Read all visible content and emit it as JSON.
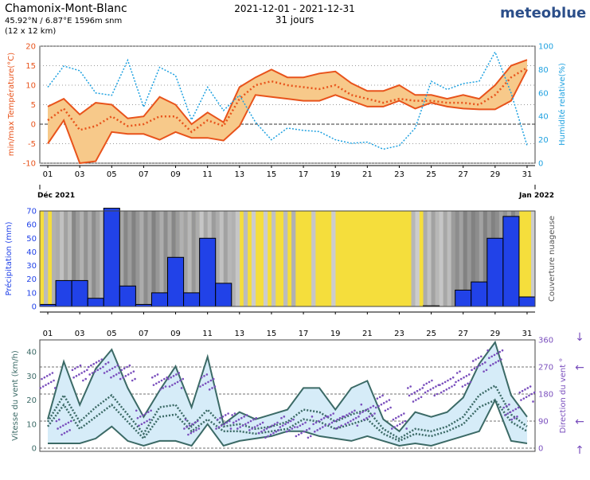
{
  "header": {
    "location": "Chamonix-Mont-Blanc",
    "coords": "45.92°N / 6.87°E   1596m snm",
    "grid": "(12 x 12 km)",
    "date_range": "2021-12-01 - 2021-12-31",
    "days": "31 jours",
    "brand": "meteoblue"
  },
  "day_ticks": [
    "01",
    "03",
    "05",
    "07",
    "09",
    "11",
    "13",
    "15",
    "17",
    "19",
    "21",
    "23",
    "25",
    "27",
    "29",
    "31"
  ],
  "date_marks": {
    "start": "Déc 2021",
    "end": "Jan 2022"
  },
  "colors": {
    "temp_line": "#e8531b",
    "temp_fill": "#f7c98a",
    "humidity": "#1ea1e0",
    "precip": "#2142e8",
    "cloud_clear": "#f5de3c",
    "cloud_dark": "#8c8c8c",
    "wind_line": "#3b6a66",
    "wind_fill": "#d6ecf8",
    "wind_dir": "#7a4fbd"
  },
  "chart_data": [
    {
      "type": "line",
      "x": [
        1,
        2,
        3,
        4,
        5,
        6,
        7,
        8,
        9,
        10,
        11,
        12,
        13,
        14,
        15,
        16,
        17,
        18,
        19,
        20,
        21,
        22,
        23,
        24,
        25,
        26,
        27,
        28,
        29,
        30,
        31
      ],
      "ylabel": "min/max Température(°C)",
      "y2label": "Humidité relative(%)",
      "ylim": [
        -10,
        20
      ],
      "y2lim": [
        0,
        100
      ],
      "yticks": [
        -10,
        -5,
        0,
        5,
        10,
        15,
        20
      ],
      "y2ticks": [
        0,
        20,
        40,
        60,
        80,
        100
      ],
      "series": [
        {
          "role": "tmax",
          "values": [
            4.5,
            6.5,
            2.5,
            5.5,
            5,
            1.5,
            2,
            7,
            5,
            0,
            3,
            0.5,
            9.5,
            12,
            14,
            12,
            12,
            13,
            13.5,
            10.5,
            8.5,
            8.5,
            10,
            7.5,
            7.5,
            6.5,
            7.5,
            6.5,
            10,
            15,
            16.5
          ]
        },
        {
          "role": "tmean",
          "values": [
            1,
            4,
            -1.5,
            -0.5,
            2,
            -0.5,
            0,
            2,
            2,
            -2,
            1,
            -0.5,
            6.5,
            10,
            11,
            10,
            9.5,
            9,
            10,
            7.5,
            6.5,
            5.5,
            6.5,
            6,
            6,
            5.5,
            5.5,
            5,
            7.5,
            12,
            14.5
          ]
        },
        {
          "role": "tmin",
          "values": [
            -5,
            1,
            -10,
            -9.5,
            -2,
            -2.5,
            -2.5,
            -4,
            -2,
            -3.5,
            -3.5,
            -4.2,
            -0.5,
            7.5,
            7,
            6.5,
            6,
            6,
            7.5,
            6,
            4.5,
            4.5,
            6,
            4,
            5.5,
            4.5,
            4,
            3.8,
            3.8,
            6,
            14
          ]
        },
        {
          "role": "humidity",
          "values": [
            65,
            83,
            79,
            60,
            58,
            88,
            48,
            82,
            75,
            37,
            65,
            45,
            58,
            35,
            20,
            30,
            28,
            27,
            20,
            17,
            18,
            12,
            15,
            30,
            70,
            63,
            68,
            70,
            95,
            60,
            15
          ]
        }
      ]
    },
    {
      "type": "bar",
      "x": [
        1,
        2,
        3,
        4,
        5,
        6,
        7,
        8,
        9,
        10,
        11,
        12,
        13,
        14,
        15,
        16,
        17,
        18,
        19,
        20,
        21,
        22,
        23,
        24,
        25,
        26,
        27,
        28,
        29,
        30,
        31
      ],
      "ylabel": "Précipitation (mm)",
      "y2label": "Couverture nuageuse",
      "ylim": [
        0,
        70
      ],
      "yticks": [
        0,
        10,
        20,
        30,
        40,
        50,
        60,
        70
      ],
      "values": [
        1.5,
        19,
        19,
        6,
        72,
        15,
        1.5,
        10,
        36,
        10,
        50,
        17,
        0,
        0,
        0,
        0,
        0,
        0,
        0,
        0,
        0,
        0,
        0,
        0,
        0.5,
        0,
        12,
        18,
        50,
        66,
        7
      ],
      "cloud_cover": [
        0.35,
        0.6,
        0.75,
        0.7,
        0.85,
        0.85,
        0.8,
        0.8,
        0.75,
        0.6,
        0.55,
        0.6,
        0.35,
        0.1,
        0.2,
        0.35,
        0.15,
        0.15,
        0.1,
        0.05,
        0.05,
        0.05,
        0.05,
        0.3,
        0.5,
        0.55,
        0.9,
        0.9,
        0.9,
        0.75,
        0.1
      ]
    },
    {
      "type": "line",
      "x": [
        1,
        2,
        3,
        4,
        5,
        6,
        7,
        8,
        9,
        10,
        11,
        12,
        13,
        14,
        15,
        16,
        17,
        18,
        19,
        20,
        21,
        22,
        23,
        24,
        25,
        26,
        27,
        28,
        29,
        30,
        31
      ],
      "ylabel": "Vitesse du vent (km/h)",
      "y2label": "Direction du vent °",
      "ylim": [
        0,
        45
      ],
      "y2lim": [
        0,
        360
      ],
      "yticks": [
        0,
        10,
        20,
        30,
        40
      ],
      "y2ticks": [
        0,
        90,
        180,
        270,
        360
      ],
      "series": [
        {
          "role": "gust",
          "values": [
            12,
            36,
            18,
            33,
            41,
            25,
            13,
            24,
            34,
            17,
            38,
            10,
            15,
            12,
            14,
            16,
            25,
            25,
            16,
            25,
            28,
            12,
            7,
            15,
            13,
            15,
            21,
            35,
            44,
            22,
            13
          ]
        },
        {
          "role": "mean_high",
          "values": [
            11,
            22,
            11,
            17,
            22,
            14,
            6,
            17,
            18,
            9,
            16,
            9,
            10,
            8,
            9,
            11,
            16,
            15,
            11,
            14,
            16,
            8,
            4,
            8,
            7,
            9,
            13,
            22,
            26,
            14,
            9
          ]
        },
        {
          "role": "mean_low",
          "values": [
            9,
            18,
            8,
            13,
            18,
            11,
            4,
            13,
            14,
            7,
            12,
            7,
            7,
            6,
            7,
            8,
            12,
            11,
            8,
            10,
            12,
            6,
            3,
            6,
            5,
            7,
            10,
            17,
            20,
            11,
            7
          ]
        },
        {
          "role": "calm",
          "values": [
            2,
            2,
            2,
            4,
            9,
            3,
            1,
            3,
            3,
            1,
            10,
            1,
            3,
            4,
            5,
            7,
            7,
            5,
            4,
            3,
            5,
            3,
            1,
            2,
            1,
            3,
            5,
            7,
            20,
            3,
            2
          ]
        }
      ],
      "direction": [
        225,
        70,
        250,
        270,
        260,
        250,
        100,
        220,
        225,
        70,
        220,
        90,
        90,
        75,
        60,
        80,
        60,
        80,
        90,
        100,
        120,
        150,
        90,
        180,
        200,
        210,
        230,
        280,
        300,
        120,
        180
      ],
      "side_arrows": [
        "↓",
        "←",
        "←",
        "↑"
      ]
    }
  ]
}
